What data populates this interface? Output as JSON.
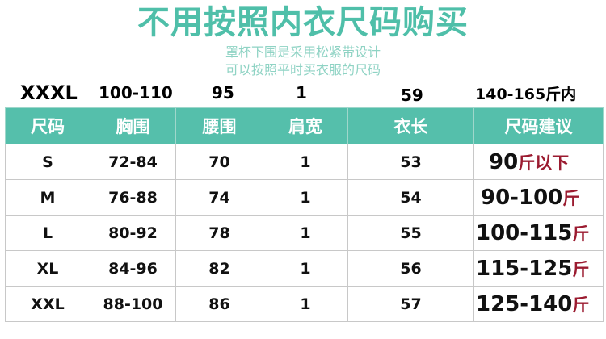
{
  "title": "不用按照内衣尺码购买",
  "subtitle": "罩杯下围是采用松紧带设计",
  "subtitle2": "可以按照平时买衣服的尺码",
  "overlay_row": {
    "size": "XXXL",
    "chest": "100-110",
    "waist": "95",
    "shoulder": "1",
    "length": "59",
    "rec": "140-165斤内"
  },
  "headers": [
    "尺码",
    "胸围",
    "腰围",
    "肩宽",
    "衣长",
    "尺码建议"
  ],
  "rows": [
    {
      "size": "S",
      "chest": "72-84",
      "waist": "70",
      "shoulder": "1",
      "length": "53",
      "rec_num": "90",
      "rec_unit": "斤以下"
    },
    {
      "size": "M",
      "chest": "76-88",
      "waist": "74",
      "shoulder": "1",
      "length": "54",
      "rec_num": "90-100",
      "rec_unit": "斤"
    },
    {
      "size": "L",
      "chest": "80-92",
      "waist": "78",
      "shoulder": "1",
      "length": "55",
      "rec_num": "100-115",
      "rec_unit": "斤"
    },
    {
      "size": "XL",
      "chest": "84-96",
      "waist": "82",
      "shoulder": "1",
      "length": "56",
      "rec_num": "115-125",
      "rec_unit": "斤"
    },
    {
      "size": "XXL",
      "chest": "88-100",
      "waist": "86",
      "shoulder": "1",
      "length": "57",
      "rec_num": "125-140",
      "rec_unit": "斤"
    }
  ],
  "colors": {
    "accent": "#55bfab",
    "unit": "#9b1b30"
  }
}
